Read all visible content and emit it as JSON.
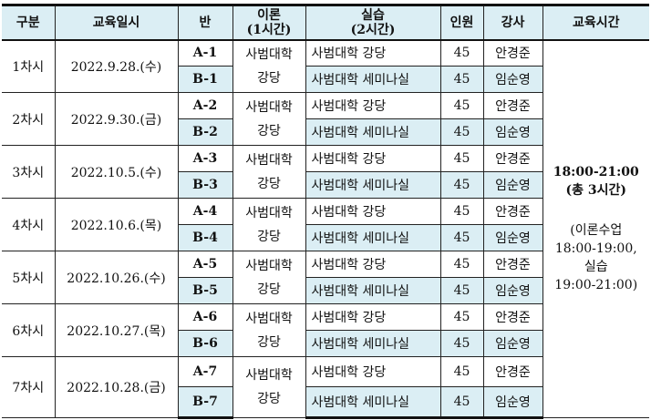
{
  "headers": [
    "구분",
    "교육일시",
    "반",
    "이론\n(1시간)",
    "실습\n(2시간)",
    "인원",
    "강사",
    "교육시간"
  ],
  "sessions": [
    {
      "label": "1차시",
      "date": "2022.9.28.(수)",
      "a": "A-1",
      "b": "B-1"
    },
    {
      "label": "2차시",
      "date": "2022.9.30.(금)",
      "a": "A-2",
      "b": "B-2"
    },
    {
      "label": "3차시",
      "date": "2022.10.5.(수)",
      "a": "A-3",
      "b": "B-3"
    },
    {
      "label": "4차시",
      "date": "2022.10.6.(목)",
      "a": "A-4",
      "b": "B-4"
    },
    {
      "label": "5차시",
      "date": "2022.10.26.(수)",
      "a": "A-5",
      "b": "B-5"
    },
    {
      "label": "6차시",
      "date": "2022.10.27.(목)",
      "a": "A-6",
      "b": "B-6"
    },
    {
      "label": "7차시",
      "date": "2022.10.28.(금)",
      "a": "A-7",
      "b": "B-7"
    }
  ],
  "theory": "사범대학\n강당",
  "practice_a": "사범대학 강당",
  "practice_b": "사범대학 세미나실",
  "count": "45",
  "instructor_a": "안경준",
  "instructor_b": "임순영",
  "time": {
    "main": "18:00-21:00",
    "total": "(총 3시간)",
    "detail1": "(이론수업",
    "detail2": "18:00-19:00,",
    "detail3": "실습",
    "detail4": "19:00-21:00)"
  },
  "colors": {
    "highlight": "#dbeef4"
  }
}
